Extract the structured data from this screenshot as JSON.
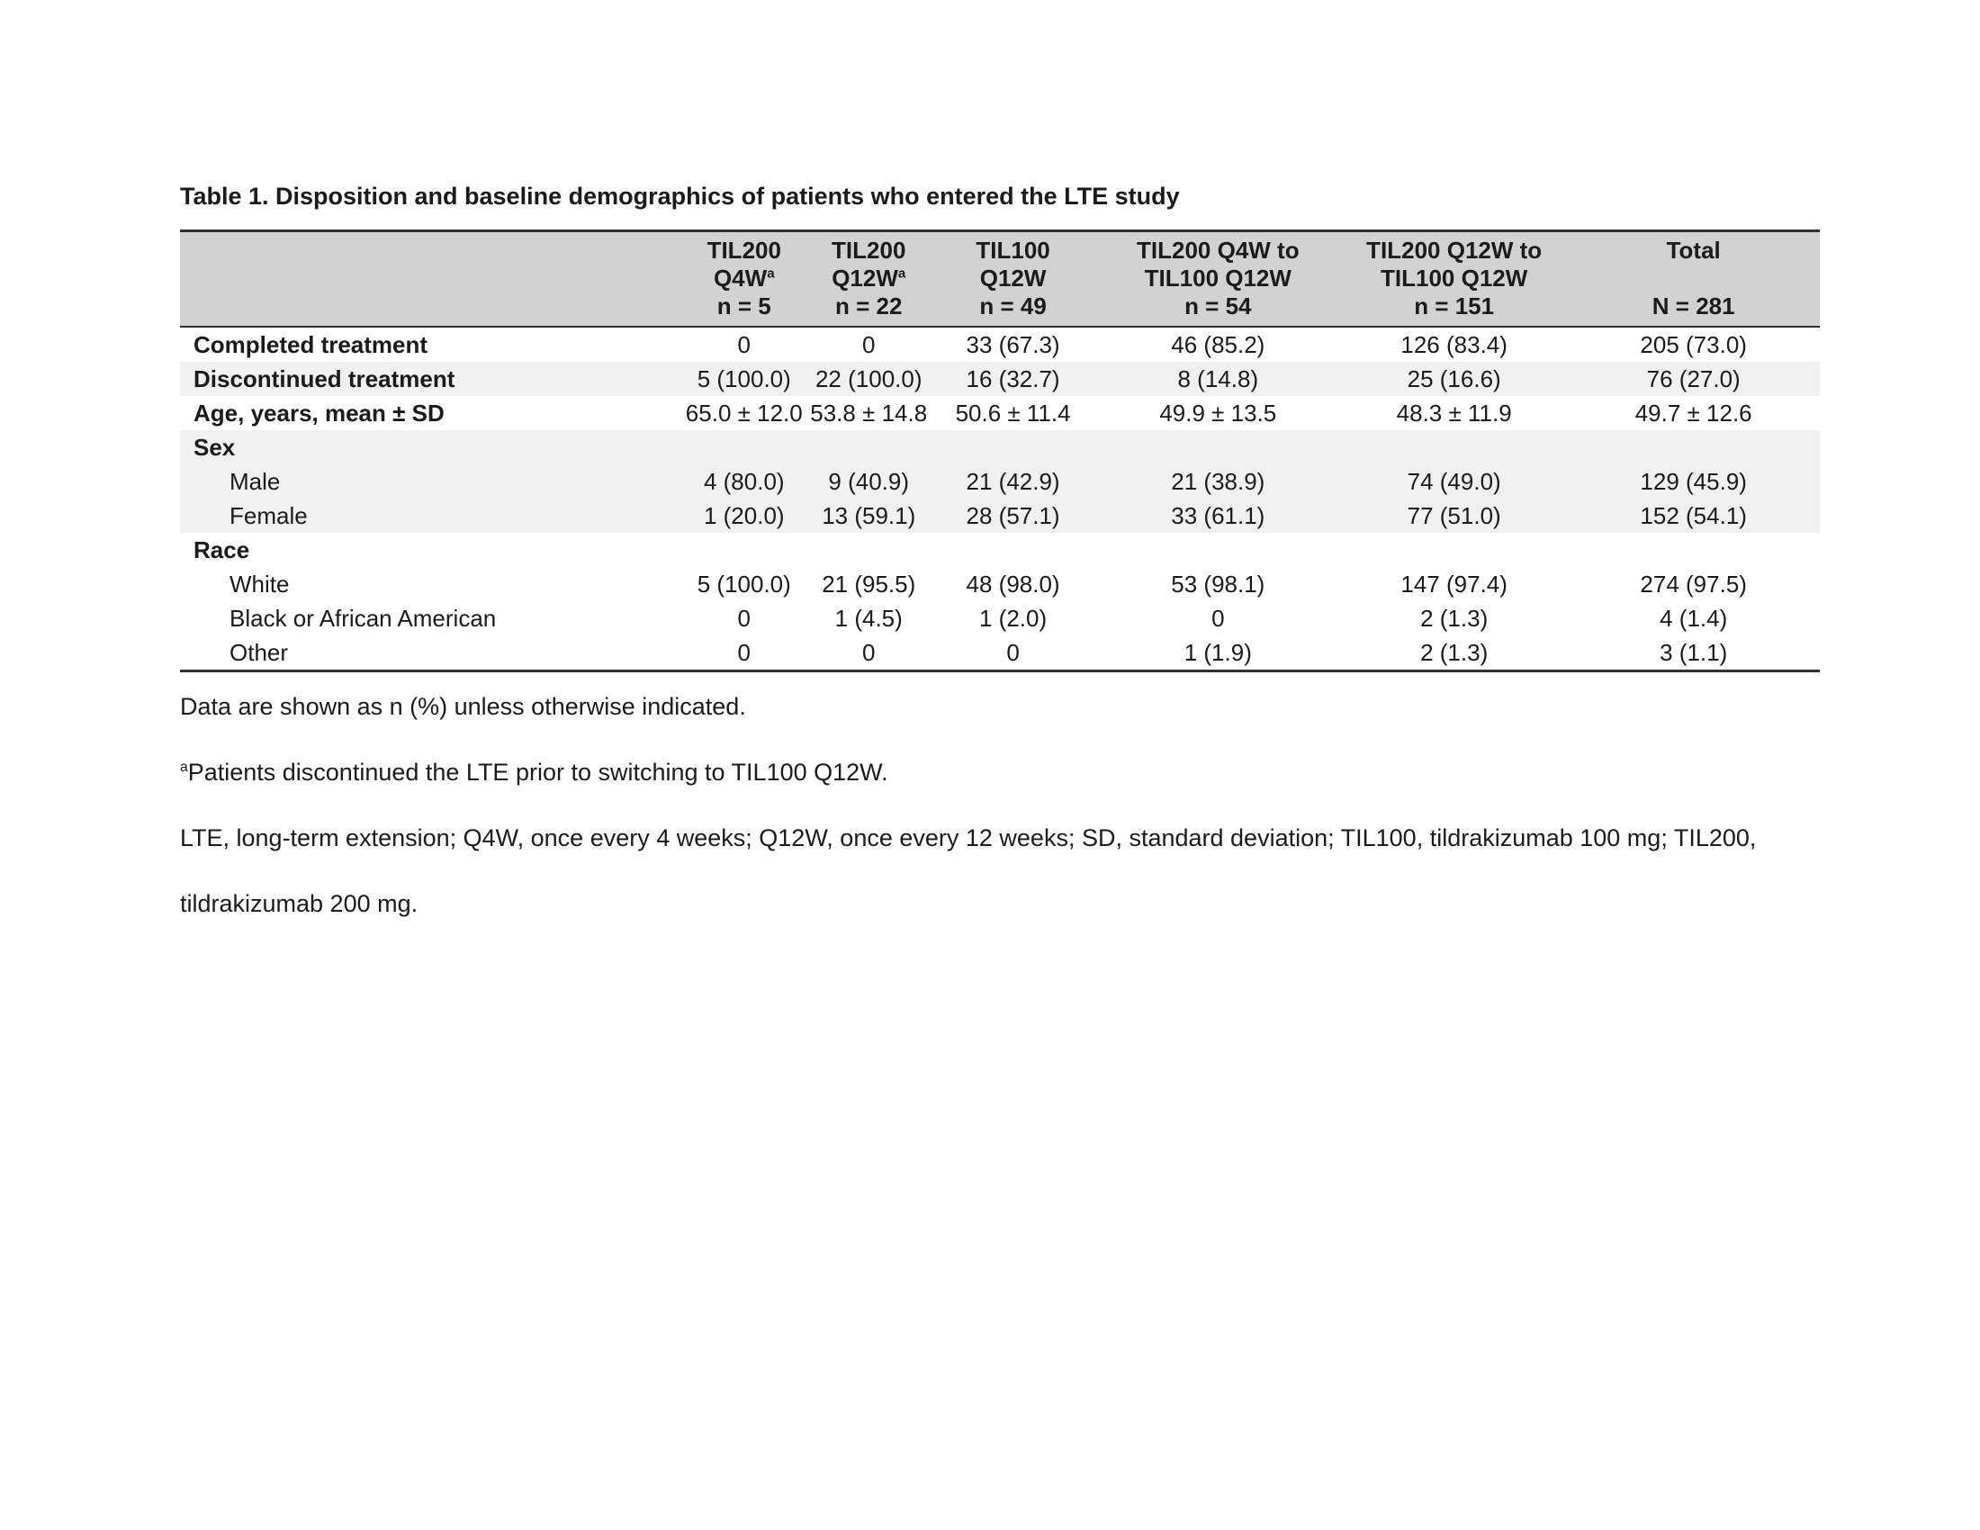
{
  "title": "Table 1. Disposition and baseline demographics of patients who entered the LTE study",
  "colors": {
    "page_bg": "#ffffff",
    "header_bg": "#d2d2d2",
    "stripe_bg": "#f0f0f0",
    "border": "#2f2f2f",
    "text": "#1b1b1b"
  },
  "table": {
    "columns": [
      {
        "line1": "TIL200",
        "line2": "Q4W",
        "sup": "a",
        "n": "n = 5"
      },
      {
        "line1": "TIL200",
        "line2": "Q12W",
        "sup": "a",
        "n": "n = 22"
      },
      {
        "line1": "TIL100",
        "line2": "Q12W",
        "sup": "",
        "n": "n = 49"
      },
      {
        "line1": "TIL200 Q4W to",
        "line2": "TIL100 Q12W",
        "sup": "",
        "n": "n = 54"
      },
      {
        "line1": "TIL200 Q12W to",
        "line2": "TIL100 Q12W",
        "sup": "",
        "n": "n = 151"
      },
      {
        "line1": "Total",
        "line2": "",
        "sup": "",
        "n": "N = 281"
      }
    ],
    "rows": [
      {
        "label": "Completed treatment",
        "kind": "main",
        "shaded": false,
        "values": [
          "0",
          "0",
          "33 (67.3)",
          "46 (85.2)",
          "126 (83.4)",
          "205 (73.0)"
        ]
      },
      {
        "label": "Discontinued treatment",
        "kind": "main",
        "shaded": true,
        "values": [
          "5 (100.0)",
          "22 (100.0)",
          "16 (32.7)",
          "8 (14.8)",
          "25 (16.6)",
          "76 (27.0)"
        ]
      },
      {
        "label": "Age, years, mean ± SD",
        "kind": "main",
        "shaded": false,
        "values": [
          "65.0 ± 12.0",
          "53.8 ± 14.8",
          "50.6 ± 11.4",
          "49.9 ± 13.5",
          "48.3 ± 11.9",
          "49.7 ± 12.6"
        ]
      },
      {
        "label": "Sex",
        "kind": "group",
        "shaded": true,
        "values": [
          "",
          "",
          "",
          "",
          "",
          ""
        ]
      },
      {
        "label": "Male",
        "kind": "sub",
        "shaded": true,
        "values": [
          "4 (80.0)",
          "9 (40.9)",
          "21 (42.9)",
          "21 (38.9)",
          "74 (49.0)",
          "129 (45.9)"
        ]
      },
      {
        "label": "Female",
        "kind": "sub",
        "shaded": true,
        "values": [
          "1 (20.0)",
          "13 (59.1)",
          "28 (57.1)",
          "33 (61.1)",
          "77 (51.0)",
          "152 (54.1)"
        ]
      },
      {
        "label": "Race",
        "kind": "group",
        "shaded": false,
        "values": [
          "",
          "",
          "",
          "",
          "",
          ""
        ]
      },
      {
        "label": "White",
        "kind": "sub",
        "shaded": false,
        "values": [
          "5 (100.0)",
          "21 (95.5)",
          "48 (98.0)",
          "53 (98.1)",
          "147 (97.4)",
          "274 (97.5)"
        ]
      },
      {
        "label": "Black or African American",
        "kind": "sub",
        "shaded": false,
        "values": [
          "0",
          "1 (4.5)",
          "1 (2.0)",
          "0",
          "2 (1.3)",
          "4 (1.4)"
        ]
      },
      {
        "label": "Other",
        "kind": "sub",
        "shaded": false,
        "values": [
          "0",
          "0",
          "0",
          "1 (1.9)",
          "2 (1.3)",
          "3 (1.1)"
        ]
      }
    ]
  },
  "footnotes": [
    {
      "sup": "",
      "text": "Data are shown as n (%) unless otherwise indicated."
    },
    {
      "sup": "a",
      "text": "Patients discontinued the LTE prior to switching to TIL100 Q12W."
    },
    {
      "sup": "",
      "text": "LTE, long-term extension; Q4W, once every 4 weeks; Q12W, once every 12 weeks; SD, standard deviation; TIL100, tildrakizumab 100 mg; TIL200, tildrakizumab 200 mg."
    }
  ]
}
